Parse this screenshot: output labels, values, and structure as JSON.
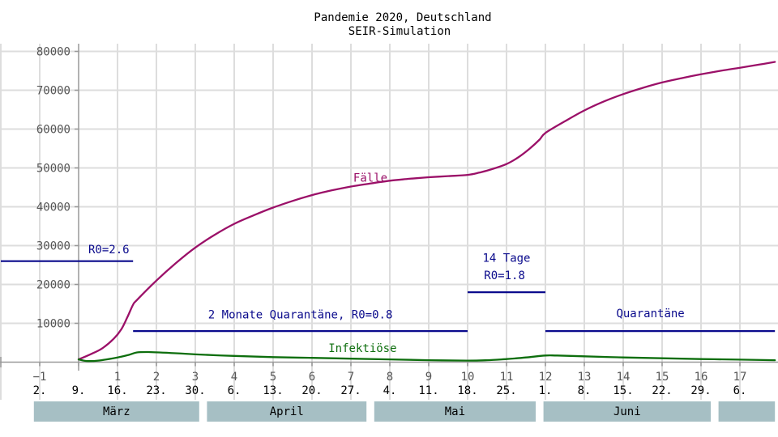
{
  "chart_data": {
    "type": "line",
    "title": "Pandemie 2020, Deutschland",
    "subtitle": "SEIR-Simulation",
    "xlim": [
      -2,
      17.9
    ],
    "ylim": [
      -2000,
      84000
    ],
    "grid": true,
    "x_ticks": [
      -1,
      0,
      1,
      2,
      3,
      4,
      5,
      6,
      7,
      8,
      9,
      10,
      11,
      12,
      13,
      14,
      15,
      16,
      17
    ],
    "x_tick_labels": [
      "−1",
      "",
      "1",
      "2",
      "3",
      "4",
      "5",
      "6",
      "7",
      "8",
      "9",
      "10",
      "11",
      "12",
      "13",
      "14",
      "15",
      "16",
      "17"
    ],
    "y_ticks": [
      10000,
      20000,
      30000,
      40000,
      50000,
      60000,
      70000,
      80000
    ],
    "y_tick_labels": [
      "10000",
      "20000",
      "30000",
      "40000",
      "50000",
      "60000",
      "70000",
      "80000"
    ],
    "date_ticks": [
      {
        "x": -1,
        "label": "2."
      },
      {
        "x": 0,
        "label": "9."
      },
      {
        "x": 1,
        "label": "16."
      },
      {
        "x": 2,
        "label": "23."
      },
      {
        "x": 3,
        "label": "30."
      },
      {
        "x": 4,
        "label": "6."
      },
      {
        "x": 5,
        "label": "13."
      },
      {
        "x": 6,
        "label": "20."
      },
      {
        "x": 7,
        "label": "27."
      },
      {
        "x": 8,
        "label": "4."
      },
      {
        "x": 9,
        "label": "11."
      },
      {
        "x": 10,
        "label": "18."
      },
      {
        "x": 11,
        "label": "25."
      },
      {
        "x": 12,
        "label": "1."
      },
      {
        "x": 13,
        "label": "8."
      },
      {
        "x": 14,
        "label": "15."
      },
      {
        "x": 15,
        "label": "22."
      },
      {
        "x": 16,
        "label": "29."
      },
      {
        "x": 17,
        "label": "6."
      }
    ],
    "months": [
      {
        "label": "März",
        "from": -1.15,
        "to": 3.1
      },
      {
        "label": "April",
        "from": 3.3,
        "to": 7.4
      },
      {
        "label": "Mai",
        "from": 7.6,
        "to": 11.75
      },
      {
        "label": "Juni",
        "from": 11.95,
        "to": 16.25
      },
      {
        "label": "",
        "from": 16.45,
        "to": 17.9
      }
    ],
    "series": [
      {
        "name": "Fälle",
        "color": "#9b1068",
        "x": [
          0,
          0.3,
          0.6,
          0.9,
          1.1,
          1.25,
          1.4,
          1.5,
          2,
          2.5,
          3,
          3.5,
          4,
          4.5,
          5,
          5.5,
          6,
          6.5,
          7,
          7.5,
          8,
          8.5,
          9,
          9.5,
          10,
          10.3,
          10.6,
          11,
          11.3,
          11.6,
          11.85,
          12,
          12.5,
          13,
          13.5,
          14,
          14.5,
          15,
          15.5,
          16,
          16.5,
          17,
          17.5,
          17.9
        ],
        "y": [
          700,
          2000,
          3500,
          6000,
          8500,
          11500,
          14800,
          16000,
          21000,
          25500,
          29500,
          32800,
          35600,
          37800,
          39800,
          41500,
          43000,
          44200,
          45200,
          46000,
          46700,
          47200,
          47600,
          47900,
          48200,
          48800,
          49600,
          51000,
          52700,
          55000,
          57300,
          59000,
          62000,
          64800,
          67100,
          69000,
          70600,
          72000,
          73100,
          74100,
          75000,
          75800,
          76600,
          77300
        ]
      },
      {
        "name": "Infektiöse",
        "color": "#0d6e0d",
        "x": [
          0,
          0.2,
          0.5,
          1,
          1.3,
          1.5,
          1.8,
          2.5,
          3,
          4,
          5,
          6,
          7,
          8,
          9,
          10,
          10.5,
          11,
          11.5,
          12,
          12.3,
          13,
          14,
          15,
          16,
          17,
          17.9
        ],
        "y": [
          700,
          300,
          400,
          1200,
          1900,
          2500,
          2600,
          2300,
          2000,
          1600,
          1300,
          1100,
          900,
          700,
          500,
          400,
          500,
          800,
          1200,
          1700,
          1700,
          1500,
          1200,
          1000,
          800,
          650,
          500
        ]
      }
    ],
    "r0_segments": [
      {
        "from": -2,
        "to": 1.4,
        "value": 26000,
        "color": "#0a0a8c"
      },
      {
        "from": 1.4,
        "to": 10,
        "value": 8000,
        "color": "#0a0a8c"
      },
      {
        "from": 10,
        "to": 12,
        "value": 18000,
        "color": "#0a0a8c"
      },
      {
        "from": 12,
        "to": 17.9,
        "value": 8000,
        "color": "#0a0a8c"
      }
    ],
    "annotations": [
      {
        "text": "R0=2.6",
        "x": 0.25,
        "y": 28000,
        "color": "#0a0a8c",
        "anchor": "start"
      },
      {
        "text": "2 Monate Quarantäne, R0=0.8",
        "x": 5.7,
        "y": 11200,
        "color": "#0a0a8c",
        "anchor": "middle"
      },
      {
        "text": "14 Tage",
        "x": 11,
        "y": 25800,
        "color": "#0a0a8c",
        "anchor": "middle"
      },
      {
        "text": "R0=1.8",
        "x": 10.95,
        "y": 21400,
        "color": "#0a0a8c",
        "anchor": "middle"
      },
      {
        "text": "Quarantäne",
        "x": 14.7,
        "y": 11600,
        "color": "#0a0a8c",
        "anchor": "middle"
      },
      {
        "text": "Fälle",
        "x": 7.5,
        "y": 46500,
        "color": "#9b1068",
        "anchor": "middle"
      },
      {
        "text": "Infektiöse",
        "x": 7.3,
        "y": 2600,
        "color": "#0d6e0d",
        "anchor": "middle"
      }
    ],
    "colors": {
      "grid": "#dddddd",
      "axis": "#999999",
      "month_box": "#a6bfc4"
    }
  }
}
